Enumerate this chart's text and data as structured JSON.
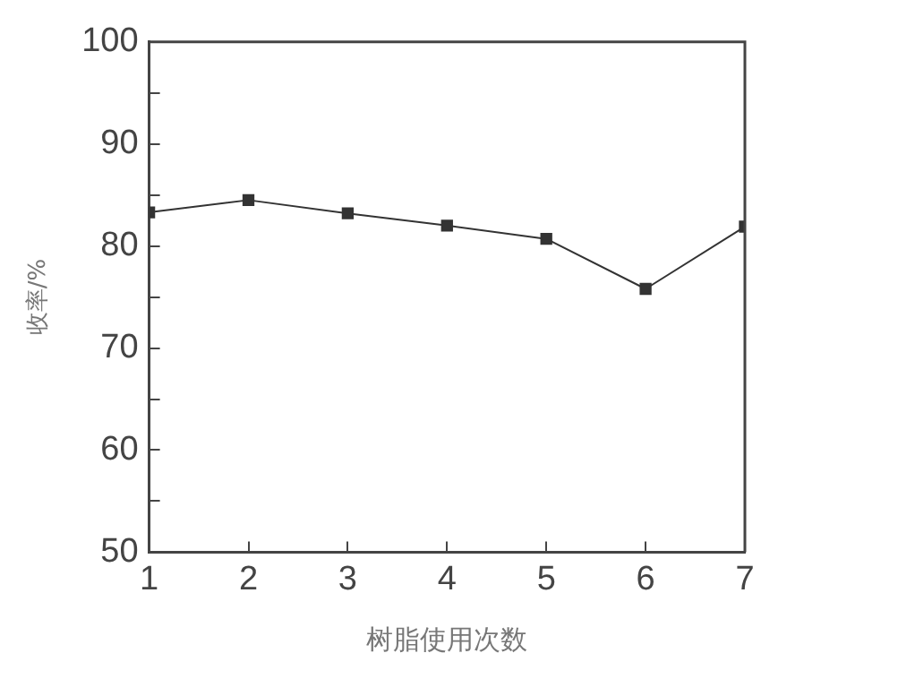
{
  "chart_data": {
    "type": "line",
    "xlabel": "树脂使用次数",
    "ylabel": "收率/%",
    "x": [
      1,
      2,
      3,
      4,
      5,
      6,
      7
    ],
    "series": [
      {
        "color": "#333333",
        "values": [
          83.3,
          84.5,
          83.2,
          82.0,
          80.7,
          75.8,
          81.9
        ]
      }
    ],
    "xlim": [
      1,
      7
    ],
    "xticks": [
      1,
      2,
      3,
      4,
      5,
      6,
      7
    ],
    "ylim": [
      50,
      100
    ],
    "yticks": [
      50,
      {
        "value": 55,
        "label": null
      },
      60,
      {
        "value": 65,
        "label": null
      },
      70,
      {
        "value": 75,
        "label": null
      },
      80,
      {
        "value": 85,
        "label": null
      },
      90,
      {
        "value": 95,
        "label": null
      },
      100
    ],
    "grid": false,
    "legend": false,
    "marker": "square",
    "line_style": "solid"
  }
}
